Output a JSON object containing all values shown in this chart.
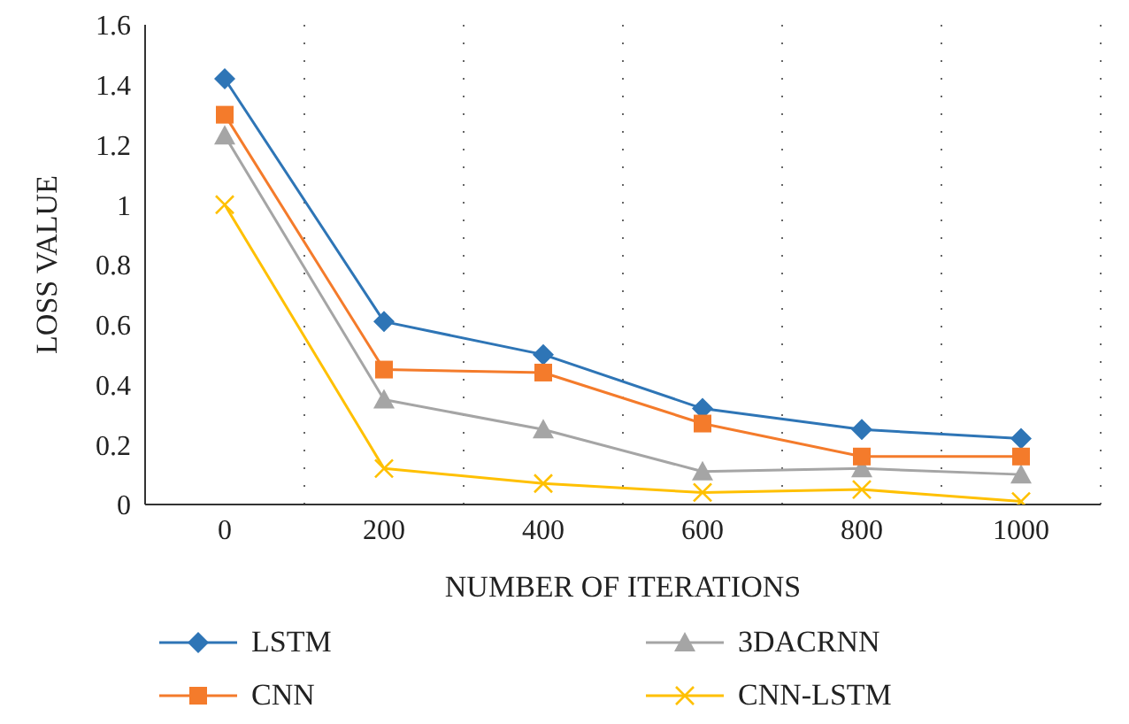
{
  "chart_data": {
    "type": "line",
    "xlabel": "NUMBER OF ITERATIONS",
    "ylabel": "LOSS VALUE",
    "categories": [
      "0",
      "200",
      "400",
      "600",
      "800",
      "1000"
    ],
    "series": [
      {
        "name": "LSTM",
        "color": "#2e75b6",
        "marker": "diamond",
        "values": [
          1.42,
          0.61,
          0.5,
          0.32,
          0.25,
          0.22
        ]
      },
      {
        "name": "3DACRNN",
        "color": "#a5a5a5",
        "marker": "triangle",
        "values": [
          1.23,
          0.35,
          0.25,
          0.11,
          0.12,
          0.1
        ]
      },
      {
        "name": "CNN",
        "color": "#f47b2b",
        "marker": "square",
        "values": [
          1.3,
          0.45,
          0.44,
          0.27,
          0.16,
          0.16
        ]
      },
      {
        "name": "CNN-LSTM",
        "color": "#ffc000",
        "marker": "cross",
        "values": [
          1.0,
          0.12,
          0.07,
          0.04,
          0.05,
          0.01
        ]
      }
    ],
    "ylim": [
      0,
      1.6
    ],
    "yticks": [
      0,
      0.2,
      0.4,
      0.6,
      0.8,
      1,
      1.2,
      1.4,
      1.6
    ],
    "grid": "x",
    "legend": "bottom"
  }
}
